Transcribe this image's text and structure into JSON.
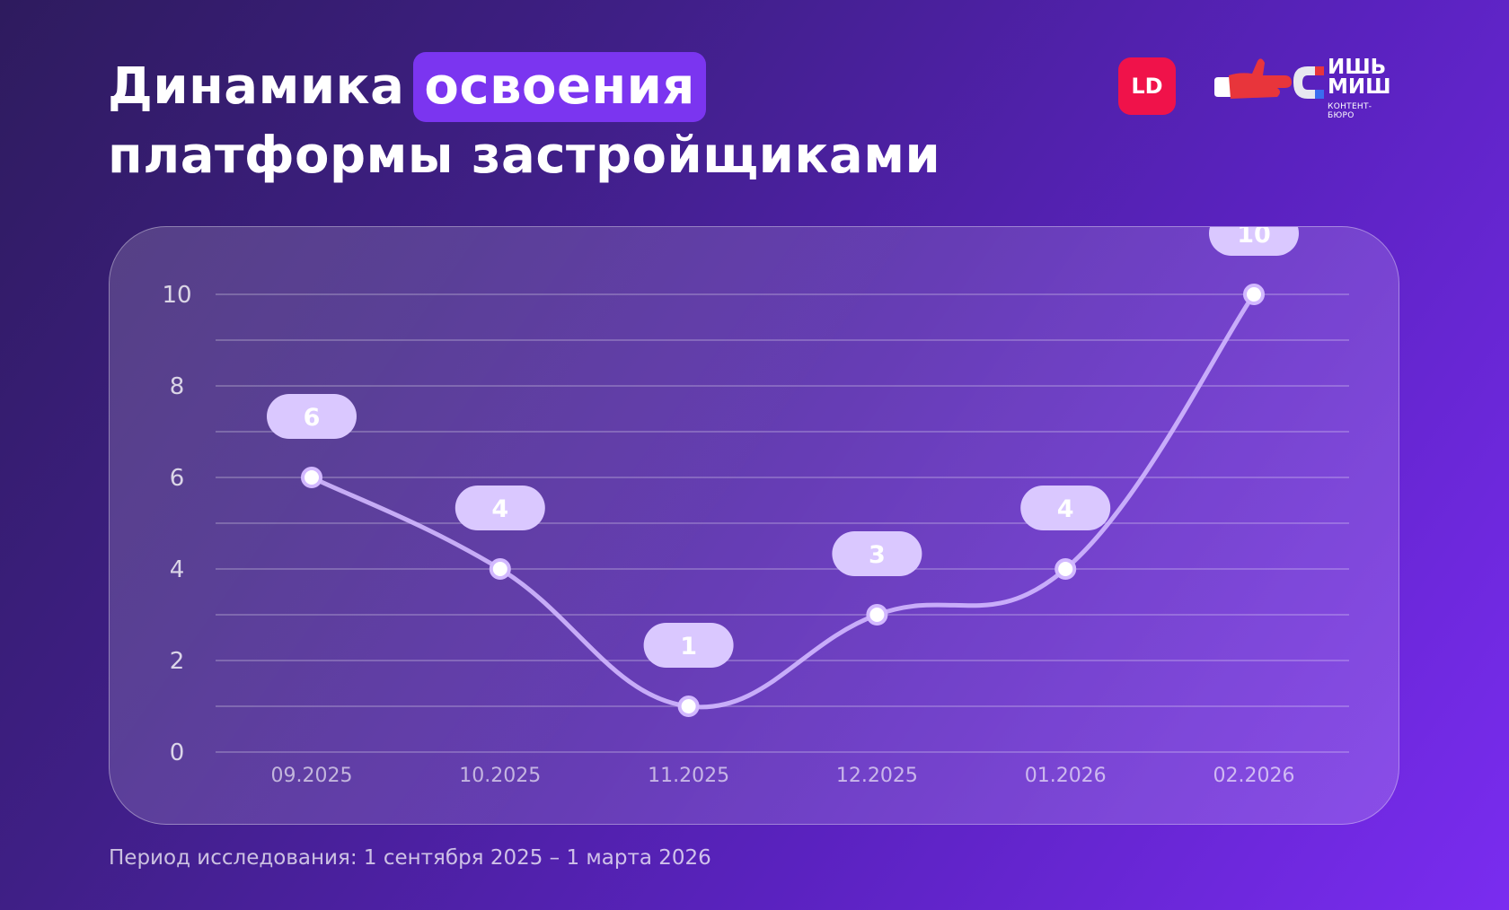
{
  "title": {
    "part1": "Динамика",
    "highlight": "освоения",
    "line2": "платформы застройщиками"
  },
  "logos": {
    "ld": "LD",
    "brand_line1": "ИШЬ",
    "brand_line2": "МИШ",
    "brand_sub": "КОНТЕНТ-БЮРО"
  },
  "colors": {
    "accent": "#7b35f0",
    "ld_red": "#f0124a",
    "line": "#d2b8ff",
    "label_bg": "#dac8ff"
  },
  "chart_data": {
    "type": "line",
    "categories": [
      "09.2025",
      "10.2025",
      "11.2025",
      "12.2025",
      "01.2026",
      "02.2026"
    ],
    "series": [
      {
        "values": [
          6,
          4,
          1,
          3,
          4,
          10
        ]
      }
    ],
    "yticks": [
      0,
      2,
      4,
      6,
      8,
      10
    ],
    "ylim": [
      0,
      10
    ],
    "grid": true,
    "data_labels": true,
    "smooth": true
  },
  "footer": "Период исследования: 1 сентября 2025 – 1 марта 2026"
}
